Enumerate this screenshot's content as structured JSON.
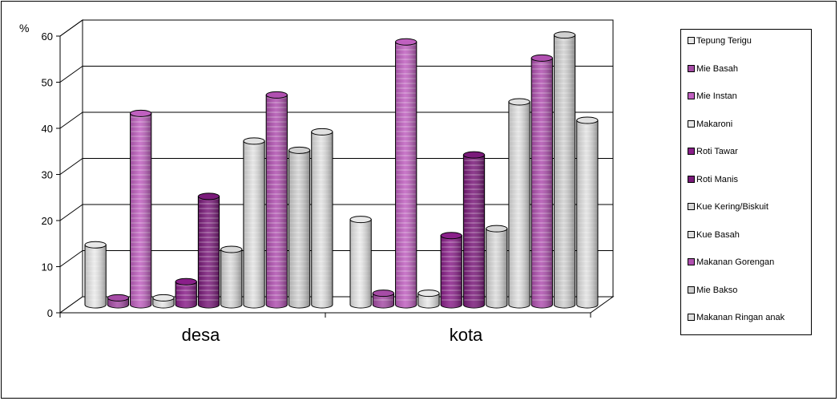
{
  "chart_data": {
    "type": "bar",
    "ylabel": "%",
    "ylim": [
      0,
      60
    ],
    "yticks": [
      0,
      10,
      20,
      30,
      40,
      50,
      60
    ],
    "categories": [
      "desa",
      "kota"
    ],
    "series": [
      {
        "name": "Tepung Terigu",
        "values": [
          13,
          18.5
        ],
        "color": "#e8e8e8"
      },
      {
        "name": "Mie Basah",
        "values": [
          1.5,
          2.5
        ],
        "color": "#a64ca6"
      },
      {
        "name": "Mie Instan",
        "values": [
          41.5,
          57
        ],
        "color": "#c060c0"
      },
      {
        "name": "Makaroni",
        "values": [
          1.5,
          2.5
        ],
        "color": "#e8e8e8"
      },
      {
        "name": "Roti Tawar",
        "values": [
          5,
          15
        ],
        "color": "#8a1f8a"
      },
      {
        "name": "Roti Manis",
        "values": [
          23.5,
          32.5
        ],
        "color": "#7a1a7a"
      },
      {
        "name": "Kue Kering/Biskuit",
        "values": [
          12,
          16.5
        ],
        "color": "#d8d8d8"
      },
      {
        "name": "Kue Basah",
        "values": [
          35.5,
          44
        ],
        "color": "#e0e0e0"
      },
      {
        "name": "Makanan Gorengan",
        "values": [
          45.5,
          53.5
        ],
        "color": "#b050b0"
      },
      {
        "name": "Mie Bakso",
        "values": [
          33.5,
          58.5
        ],
        "color": "#d0d0d0"
      },
      {
        "name": "Makanan Ringan anak",
        "values": [
          37.5,
          40
        ],
        "color": "#e0e0e0"
      }
    ]
  }
}
